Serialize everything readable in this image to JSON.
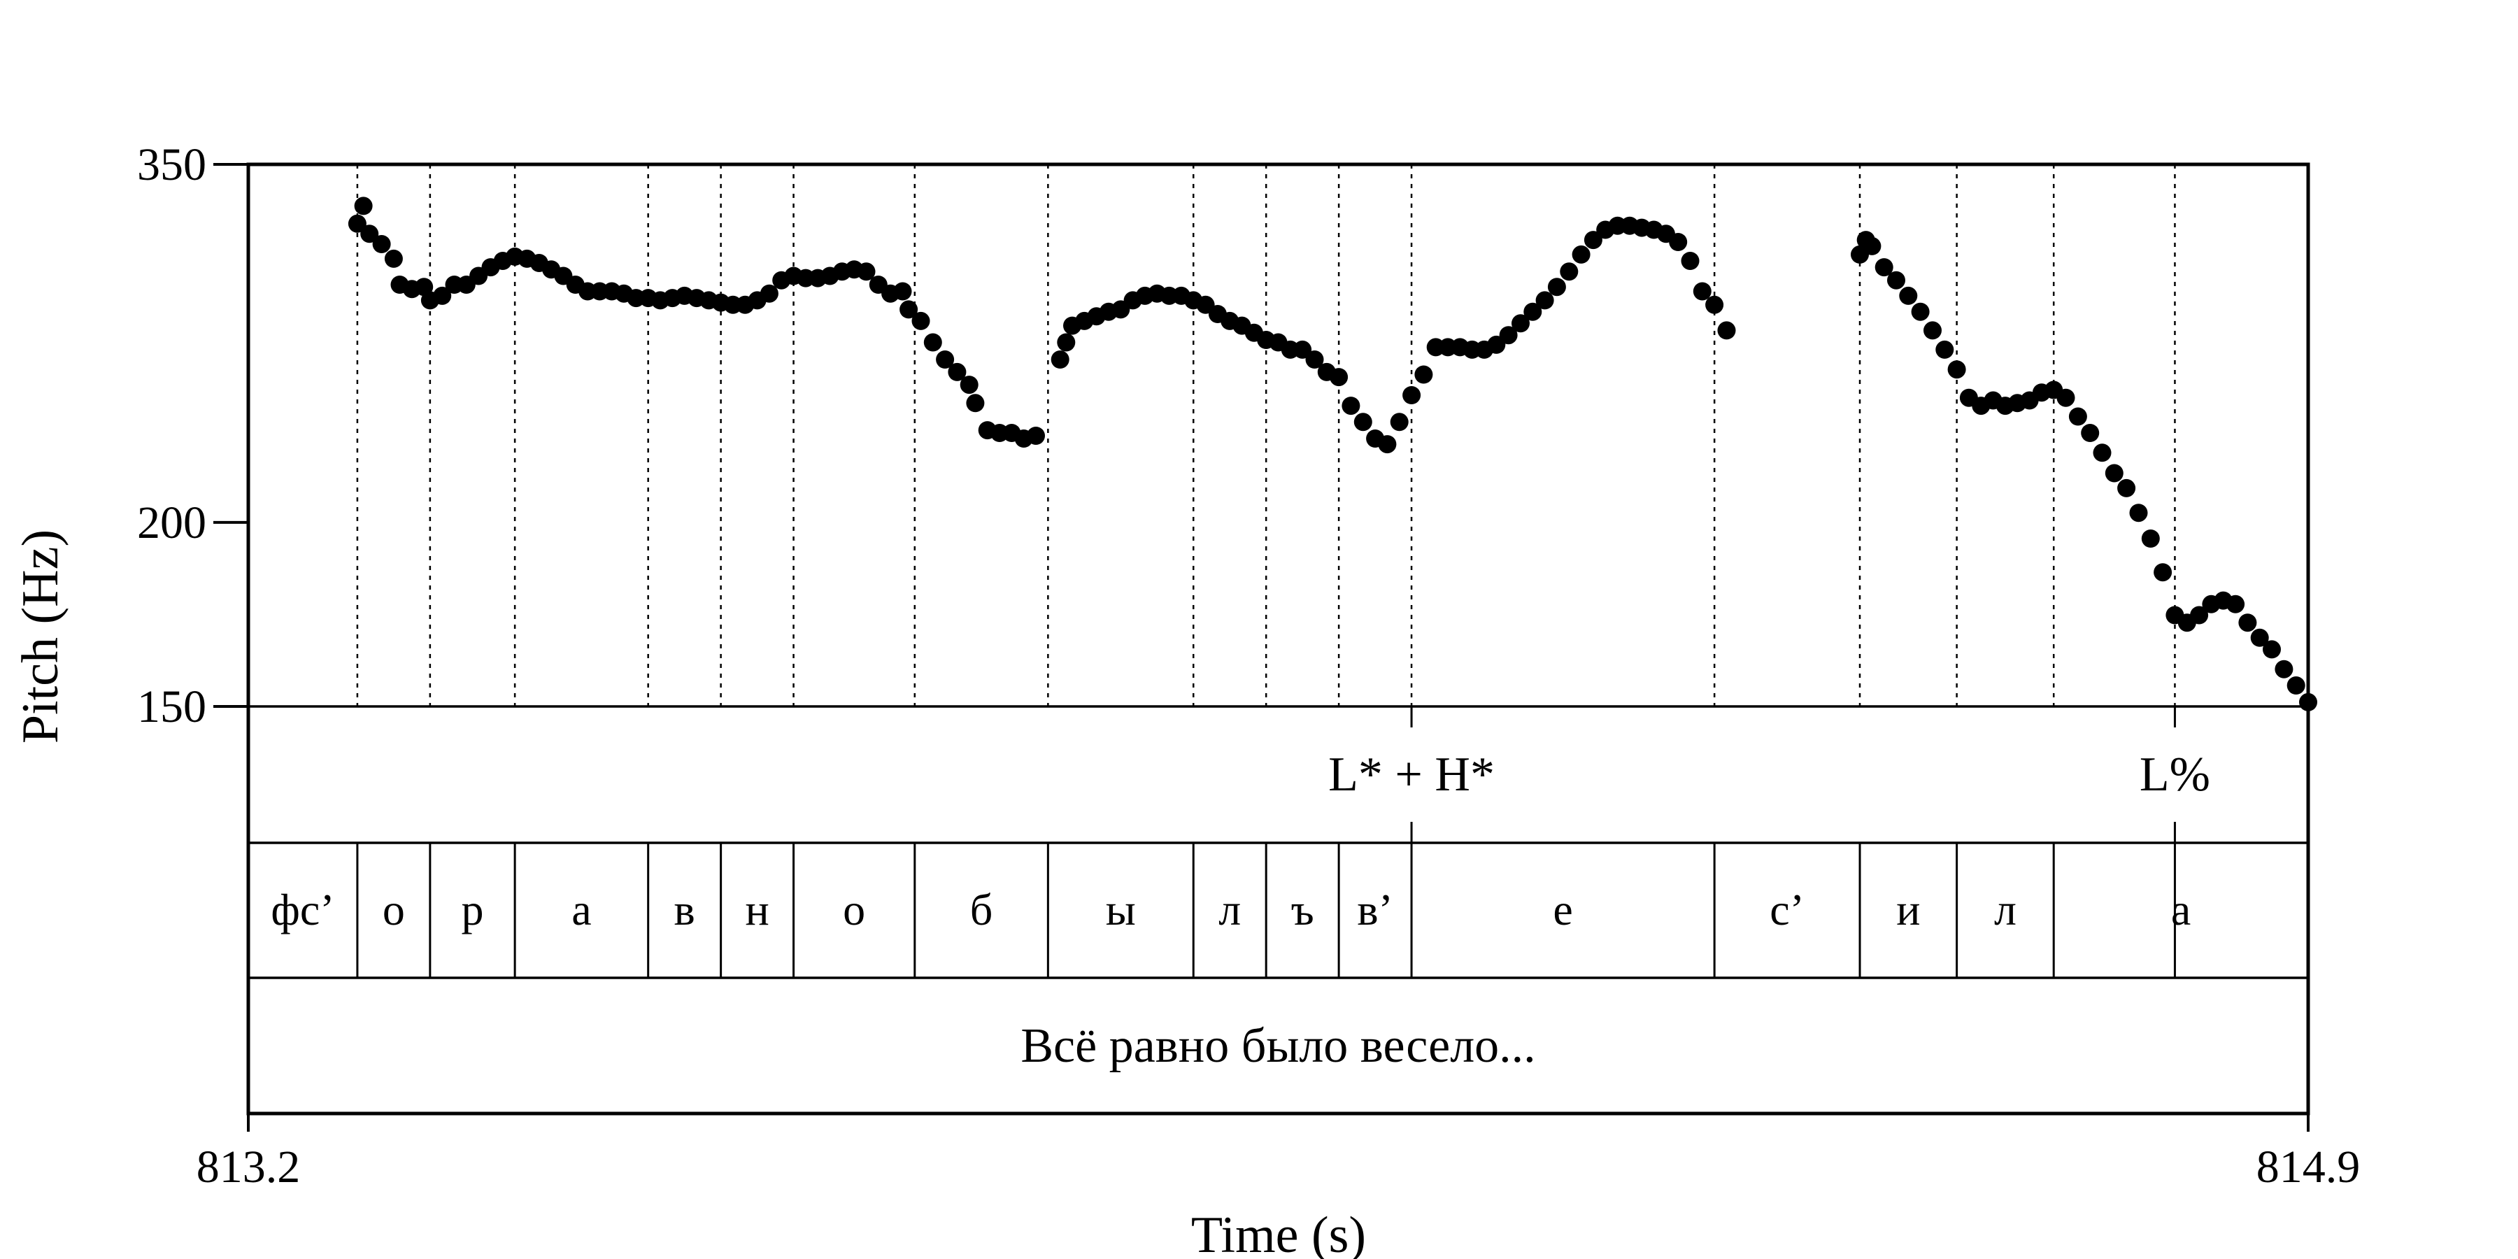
{
  "chart_data": {
    "type": "scatter",
    "ylabel": "Pitch (Hz)",
    "xlabel": "Time (s)",
    "xlim": [
      813.2,
      814.9
    ],
    "ylim": [
      150,
      350
    ],
    "y_scale": "log",
    "x_ticks": [
      "813.2",
      "814.9"
    ],
    "y_ticks": [
      {
        "value": 350,
        "label": "350"
      },
      {
        "value": 200,
        "label": "200"
      },
      {
        "value": 150,
        "label": "150"
      }
    ],
    "segment_boundaries": [
      813.29,
      813.35,
      813.42,
      813.53,
      813.59,
      813.65,
      813.75,
      813.86,
      813.98,
      814.04,
      814.1,
      814.16,
      814.41,
      814.53,
      814.61,
      814.69,
      814.79
    ],
    "segments": [
      {
        "label": "фс’",
        "start": 813.2,
        "end": 813.29
      },
      {
        "label": "о",
        "start": 813.29,
        "end": 813.35
      },
      {
        "label": "р",
        "start": 813.35,
        "end": 813.42
      },
      {
        "label": "а",
        "start": 813.42,
        "end": 813.53
      },
      {
        "label": "в",
        "start": 813.53,
        "end": 813.59
      },
      {
        "label": "н",
        "start": 813.59,
        "end": 813.65
      },
      {
        "label": "о",
        "start": 813.65,
        "end": 813.75
      },
      {
        "label": "б",
        "start": 813.75,
        "end": 813.86
      },
      {
        "label": "ы",
        "start": 813.86,
        "end": 813.98
      },
      {
        "label": "л",
        "start": 813.98,
        "end": 814.04
      },
      {
        "label": "ъ",
        "start": 814.04,
        "end": 814.1
      },
      {
        "label": "в’",
        "start": 814.1,
        "end": 814.16
      },
      {
        "label": "е",
        "start": 814.16,
        "end": 814.41
      },
      {
        "label": "с’",
        "start": 814.41,
        "end": 814.53
      },
      {
        "label": "и",
        "start": 814.53,
        "end": 814.61
      },
      {
        "label": "л",
        "start": 814.61,
        "end": 814.69
      },
      {
        "label": "а",
        "start": 814.69,
        "end": 814.9
      }
    ],
    "tones": [
      {
        "label": "L* + H*",
        "time": 814.16
      },
      {
        "label": "L%",
        "time": 814.79
      }
    ],
    "sentence": "Всё равно было весело...",
    "series": [
      {
        "points": [
          [
            813.29,
            319
          ],
          [
            813.295,
            328
          ],
          [
            813.3,
            314
          ],
          [
            813.31,
            309
          ],
          [
            813.32,
            302
          ],
          [
            813.325,
            290
          ],
          [
            813.335,
            288
          ],
          [
            813.345,
            289
          ],
          [
            813.35,
            283
          ],
          [
            813.36,
            285
          ],
          [
            813.37,
            290
          ],
          [
            813.38,
            290
          ],
          [
            813.39,
            294
          ],
          [
            813.4,
            298
          ],
          [
            813.41,
            301
          ],
          [
            813.42,
            303
          ],
          [
            813.43,
            302
          ],
          [
            813.44,
            300
          ],
          [
            813.45,
            297
          ],
          [
            813.46,
            294
          ],
          [
            813.47,
            290
          ],
          [
            813.48,
            287
          ],
          [
            813.49,
            287
          ],
          [
            813.5,
            287
          ],
          [
            813.51,
            286
          ],
          [
            813.52,
            284
          ],
          [
            813.53,
            284
          ],
          [
            813.54,
            283
          ],
          [
            813.55,
            284
          ],
          [
            813.56,
            285
          ],
          [
            813.57,
            284
          ],
          [
            813.58,
            283
          ],
          [
            813.59,
            282
          ],
          [
            813.6,
            281
          ],
          [
            813.61,
            281
          ],
          [
            813.62,
            283
          ],
          [
            813.63,
            286
          ],
          [
            813.64,
            292
          ],
          [
            813.65,
            294
          ],
          [
            813.66,
            293
          ],
          [
            813.67,
            293
          ],
          [
            813.68,
            294
          ],
          [
            813.69,
            296
          ],
          [
            813.7,
            297
          ],
          [
            813.71,
            296
          ],
          [
            813.72,
            290
          ],
          [
            813.73,
            286
          ],
          [
            813.74,
            287
          ]
        ]
      },
      {
        "points": [
          [
            813.745,
            279
          ],
          [
            813.755,
            274
          ],
          [
            813.765,
            265
          ],
          [
            813.775,
            258
          ],
          [
            813.785,
            253
          ],
          [
            813.795,
            248
          ],
          [
            813.8,
            241
          ],
          [
            813.81,
            231
          ],
          [
            813.82,
            230
          ],
          [
            813.83,
            230
          ],
          [
            813.84,
            228
          ],
          [
            813.85,
            229
          ]
        ]
      },
      {
        "points": [
          [
            813.87,
            258
          ],
          [
            813.875,
            265
          ],
          [
            813.88,
            272
          ],
          [
            813.89,
            274
          ],
          [
            813.9,
            276
          ],
          [
            813.91,
            278
          ],
          [
            813.92,
            279
          ],
          [
            813.93,
            283
          ],
          [
            813.94,
            285
          ],
          [
            813.95,
            286
          ],
          [
            813.96,
            285
          ],
          [
            813.97,
            285
          ],
          [
            813.98,
            283
          ],
          [
            813.99,
            281
          ],
          [
            814.0,
            277
          ],
          [
            814.01,
            274
          ],
          [
            814.02,
            272
          ],
          [
            814.03,
            269
          ],
          [
            814.04,
            266
          ],
          [
            814.05,
            265
          ],
          [
            814.06,
            262
          ],
          [
            814.07,
            262
          ],
          [
            814.08,
            258
          ],
          [
            814.09,
            253
          ],
          [
            814.1,
            251
          ],
          [
            814.11,
            240
          ],
          [
            814.12,
            234
          ],
          [
            814.13,
            228
          ],
          [
            814.14,
            226
          ],
          [
            814.15,
            234
          ],
          [
            814.16,
            244
          ],
          [
            814.17,
            252
          ],
          [
            814.18,
            263
          ],
          [
            814.19,
            263
          ],
          [
            814.2,
            263
          ],
          [
            814.21,
            262
          ],
          [
            814.22,
            262
          ],
          [
            814.23,
            264
          ],
          [
            814.24,
            268
          ],
          [
            814.25,
            273
          ],
          [
            814.26,
            278
          ],
          [
            814.27,
            283
          ],
          [
            814.28,
            289
          ],
          [
            814.29,
            296
          ],
          [
            814.3,
            304
          ],
          [
            814.31,
            311
          ],
          [
            814.32,
            316
          ],
          [
            814.33,
            318
          ],
          [
            814.34,
            318
          ],
          [
            814.35,
            317
          ],
          [
            814.36,
            316
          ],
          [
            814.37,
            314
          ],
          [
            814.38,
            310
          ],
          [
            814.39,
            301
          ],
          [
            814.4,
            287
          ],
          [
            814.41,
            281
          ],
          [
            814.42,
            270
          ]
        ]
      },
      {
        "points": [
          [
            814.53,
            304
          ],
          [
            814.535,
            311
          ],
          [
            814.54,
            308
          ],
          [
            814.55,
            298
          ],
          [
            814.56,
            292
          ],
          [
            814.57,
            285
          ],
          [
            814.58,
            278
          ],
          [
            814.59,
            270
          ],
          [
            814.6,
            262
          ],
          [
            814.61,
            254
          ],
          [
            814.62,
            243
          ],
          [
            814.63,
            240
          ],
          [
            814.64,
            242
          ],
          [
            814.65,
            240
          ],
          [
            814.66,
            241
          ],
          [
            814.67,
            242
          ],
          [
            814.68,
            245
          ],
          [
            814.69,
            246
          ],
          [
            814.7,
            243
          ],
          [
            814.71,
            236
          ],
          [
            814.72,
            230
          ],
          [
            814.73,
            223
          ],
          [
            814.74,
            216
          ],
          [
            814.75,
            211
          ],
          [
            814.76,
            203
          ],
          [
            814.77,
            195
          ],
          [
            814.78,
            185
          ],
          [
            814.79,
            173
          ],
          [
            814.8,
            171
          ],
          [
            814.81,
            173
          ],
          [
            814.82,
            176
          ],
          [
            814.83,
            177
          ],
          [
            814.84,
            176
          ],
          [
            814.85,
            171
          ],
          [
            814.86,
            167
          ],
          [
            814.87,
            164
          ],
          [
            814.88,
            159
          ],
          [
            814.89,
            155
          ],
          [
            814.9,
            151
          ]
        ]
      }
    ]
  }
}
